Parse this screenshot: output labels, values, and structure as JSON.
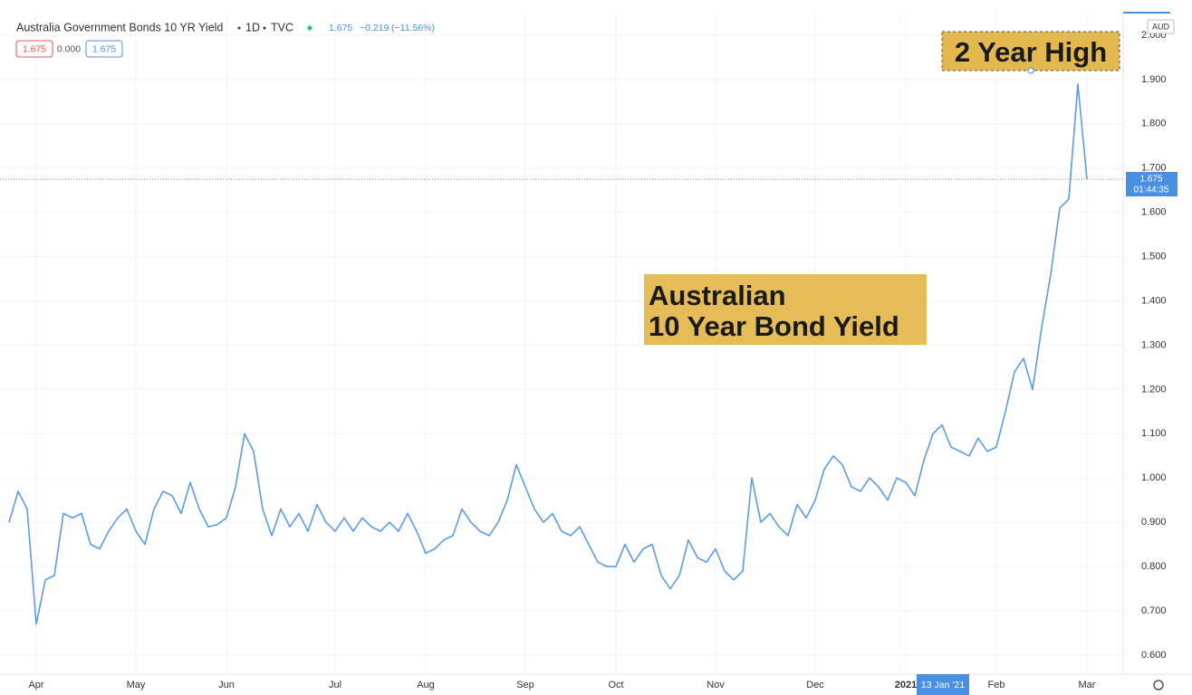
{
  "chart_data": {
    "type": "line",
    "title": "Australia Government Bonds 10 YR Yield",
    "interval": "1D",
    "source": "TVC",
    "quote": {
      "last": "1.675",
      "change": "−0.219",
      "change_pct": "(−11.56%)"
    },
    "buttons": [
      "1.675",
      "0.000",
      "1.675"
    ],
    "currency": "AUD",
    "price_label": {
      "value": "1.675",
      "countdown": "01:44:35"
    },
    "crosshair_label": "13 Jan '21",
    "annotations": [
      "2 Year High",
      "Australian",
      "10 Year Bond Yield"
    ],
    "categories": [
      null,
      null,
      null,
      "Apr",
      null,
      null,
      null,
      null,
      null,
      null,
      null,
      null,
      null,
      null,
      "May",
      null,
      null,
      null,
      null,
      null,
      null,
      null,
      null,
      null,
      "Jun",
      null,
      null,
      null,
      null,
      null,
      null,
      null,
      null,
      null,
      null,
      null,
      "Jul",
      null,
      null,
      null,
      null,
      null,
      null,
      null,
      null,
      null,
      "Aug",
      null,
      null,
      null,
      null,
      null,
      null,
      null,
      null,
      null,
      null,
      "Sep",
      null,
      null,
      null,
      null,
      null,
      null,
      null,
      null,
      null,
      "Oct",
      null,
      null,
      null,
      null,
      null,
      null,
      null,
      null,
      null,
      null,
      "Nov",
      null,
      null,
      null,
      null,
      null,
      null,
      null,
      null,
      null,
      null,
      "Dec",
      null,
      null,
      null,
      null,
      null,
      null,
      null,
      null,
      null,
      "2021",
      null,
      null,
      null,
      null,
      null,
      null,
      null,
      null,
      null,
      "Feb",
      null,
      null,
      null,
      null,
      null,
      null,
      null,
      null,
      null,
      "Mar"
    ],
    "series": [
      {
        "name": "Australia Government Bonds 10 YR Yield",
        "color": "#5b9be8",
        "values": [
          0.9,
          0.97,
          0.93,
          0.67,
          0.77,
          0.78,
          0.92,
          0.91,
          0.92,
          0.85,
          0.84,
          0.88,
          0.91,
          0.93,
          0.88,
          0.85,
          0.93,
          0.97,
          0.96,
          0.92,
          0.99,
          0.93,
          0.89,
          0.895,
          0.91,
          0.98,
          1.1,
          1.06,
          0.93,
          0.87,
          0.93,
          0.89,
          0.92,
          0.88,
          0.94,
          0.9,
          0.88,
          0.91,
          0.88,
          0.91,
          0.89,
          0.88,
          0.9,
          0.88,
          0.92,
          0.88,
          0.83,
          0.84,
          0.86,
          0.87,
          0.93,
          0.9,
          0.88,
          0.87,
          0.9,
          0.95,
          1.03,
          0.98,
          0.93,
          0.9,
          0.92,
          0.88,
          0.87,
          0.89,
          0.85,
          0.81,
          0.8,
          0.8,
          0.85,
          0.81,
          0.84,
          0.85,
          0.78,
          0.75,
          0.78,
          0.86,
          0.82,
          0.81,
          0.84,
          0.79,
          0.77,
          0.79,
          1.0,
          0.9,
          0.92,
          0.89,
          0.87,
          0.94,
          0.91,
          0.95,
          1.02,
          1.05,
          1.03,
          0.98,
          0.97,
          1.0,
          0.98,
          0.95,
          1.0,
          0.99,
          0.96,
          1.04,
          1.1,
          1.12,
          1.07,
          1.06,
          1.05,
          1.09,
          1.06,
          1.07,
          1.15,
          1.24,
          1.27,
          1.2,
          1.34,
          1.46,
          1.61,
          1.63,
          1.89,
          1.675
        ]
      }
    ],
    "ylim": [
      0.557,
      2.051
    ],
    "yticks": [
      {
        "value": 0.6,
        "label": "0.600"
      },
      {
        "value": 0.7,
        "label": "0.700"
      },
      {
        "value": 0.8,
        "label": "0.800"
      },
      {
        "value": 0.9,
        "label": "0.900"
      },
      {
        "value": 1.0,
        "label": "1.000"
      },
      {
        "value": 1.1,
        "label": "1.100"
      },
      {
        "value": 1.2,
        "label": "1.200"
      },
      {
        "value": 1.3,
        "label": "1.300"
      },
      {
        "value": 1.4,
        "label": "1.400"
      },
      {
        "value": 1.5,
        "label": "1.500"
      },
      {
        "value": 1.6,
        "label": "1.600"
      },
      {
        "value": 1.7,
        "label": "1.700"
      },
      {
        "value": 1.8,
        "label": "1.800"
      },
      {
        "value": 1.9,
        "label": "1.900"
      },
      {
        "value": 2.0,
        "label": "2.000"
      }
    ],
    "grid": true
  }
}
